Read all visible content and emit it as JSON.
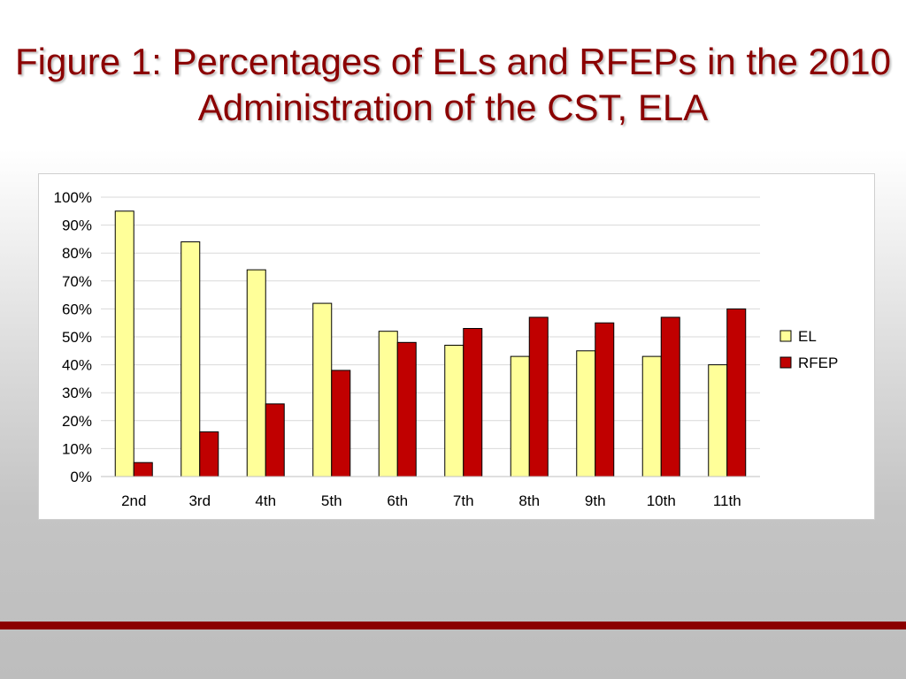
{
  "slide": {
    "title": "Figure 1: Percentages of ELs and RFEPs in the 2010 Administration of the CST, ELA"
  },
  "colors": {
    "title": "#8b0000",
    "el_fill": "#ffff99",
    "rfep_fill": "#c00000",
    "bottom_bar": "#8b0000"
  },
  "chart_data": {
    "type": "bar",
    "title": "",
    "xlabel": "",
    "ylabel": "",
    "categories": [
      "2nd",
      "3rd",
      "4th",
      "5th",
      "6th",
      "7th",
      "8th",
      "9th",
      "10th",
      "11th"
    ],
    "series": [
      {
        "name": "EL",
        "color": "#ffff99",
        "values": [
          95,
          84,
          74,
          62,
          52,
          47,
          43,
          45,
          43,
          40
        ]
      },
      {
        "name": "RFEP",
        "color": "#c00000",
        "values": [
          5,
          16,
          26,
          38,
          48,
          53,
          57,
          55,
          57,
          60
        ]
      }
    ],
    "ylim": [
      0,
      100
    ],
    "yticks": [
      "0%",
      "10%",
      "20%",
      "30%",
      "40%",
      "50%",
      "60%",
      "70%",
      "80%",
      "90%",
      "100%"
    ],
    "ytick_values": [
      0,
      10,
      20,
      30,
      40,
      50,
      60,
      70,
      80,
      90,
      100
    ],
    "grid": true,
    "legend_position": "right"
  }
}
